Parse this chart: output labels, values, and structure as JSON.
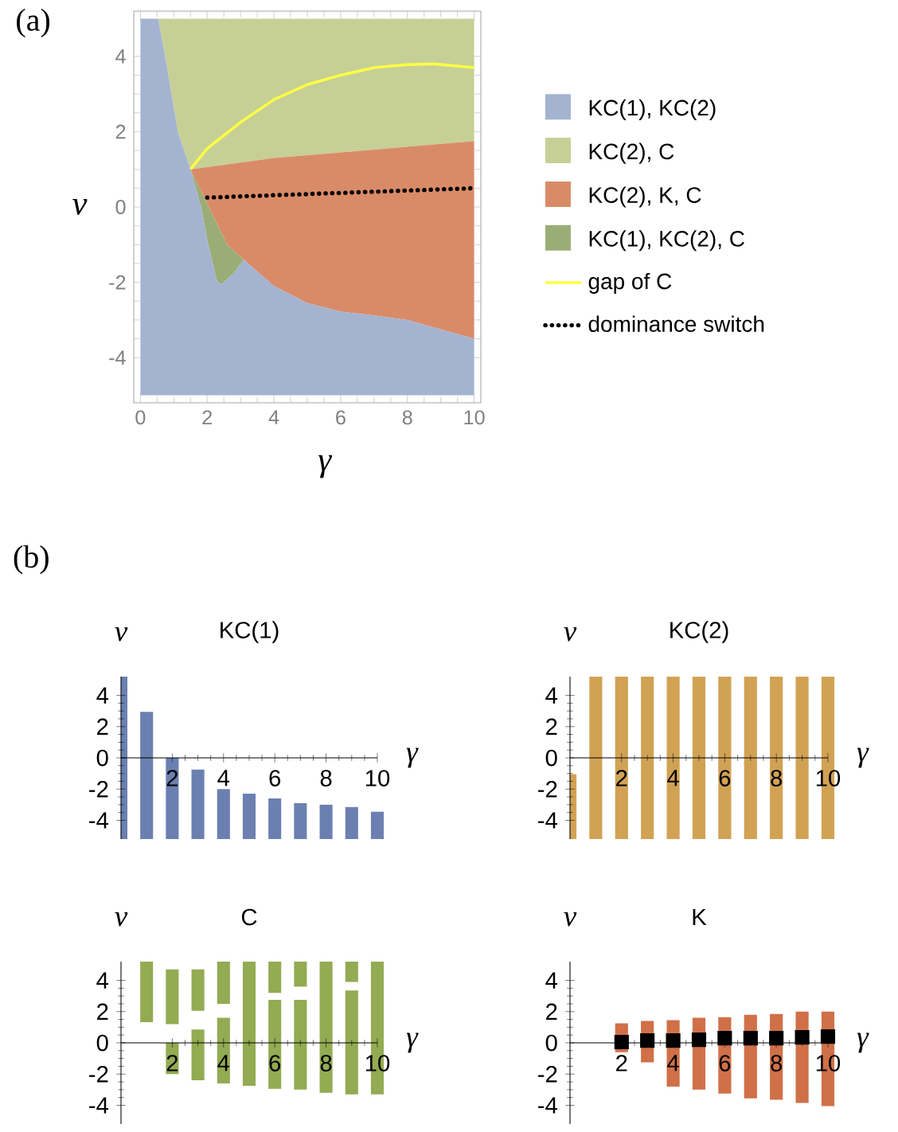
{
  "chart_data": [
    {
      "type": "area",
      "annotations": [
        "(a)"
      ],
      "xlabel": "γ",
      "ylabel": "v",
      "xlim": [
        -0.2,
        10.2
      ],
      "ylim": [
        -5.2,
        5.2
      ],
      "xticks": [
        0,
        2,
        4,
        6,
        8,
        10
      ],
      "yticks": [
        -4,
        -2,
        0,
        2,
        4
      ],
      "legend": "right",
      "series": [
        {
          "name": "KC(1), KC(2)",
          "color": "#a4b3d0",
          "x": [
            0,
            0.53,
            0.74,
            1.12,
            1.5,
            1.82,
            2.03,
            2.3,
            2.45,
            2.8,
            3.1,
            4,
            5,
            6,
            7,
            8,
            9,
            10,
            10,
            0
          ],
          "values": [
            5,
            5,
            4,
            2,
            1,
            0,
            -1,
            -2,
            -2.05,
            -1.75,
            -1.4,
            -2.1,
            -2.55,
            -2.78,
            -2.88,
            -3.0,
            -3.25,
            -3.5,
            -5,
            -5
          ]
        },
        {
          "name": "KC(2), C",
          "color": "#c6d096",
          "x": [
            0.53,
            10,
            10,
            8,
            6,
            4,
            1.5,
            1.12,
            0.74
          ],
          "values": [
            5,
            5,
            1.75,
            1.6,
            1.45,
            1.3,
            1,
            2,
            4
          ]
        },
        {
          "name": "KC(2), K, C",
          "color": "#d98b68",
          "x": [
            1.5,
            4,
            6,
            8,
            10,
            10,
            9,
            8,
            7,
            6,
            5,
            4,
            3.1,
            2.6,
            2.05
          ],
          "values": [
            1,
            1.3,
            1.45,
            1.6,
            1.75,
            -3.5,
            -3.25,
            -3.0,
            -2.88,
            -2.78,
            -2.55,
            -2.1,
            -1.4,
            -1,
            0
          ]
        },
        {
          "name": "KC(1), KC(2), C",
          "color": "#9bad76",
          "x": [
            1.5,
            2.05,
            2.6,
            3.1,
            2.8,
            2.45,
            2.3,
            2.03,
            1.82
          ],
          "values": [
            1,
            0,
            -1,
            -1.4,
            -1.75,
            -2.05,
            -2,
            -1,
            0
          ]
        },
        {
          "name": "gap of C",
          "type": "line",
          "line_style": "solid",
          "color": "#ffff44",
          "x": [
            1.5,
            2,
            3,
            4,
            5,
            6,
            7,
            8,
            8.8,
            10
          ],
          "values": [
            1.0,
            1.55,
            2.25,
            2.85,
            3.25,
            3.5,
            3.7,
            3.78,
            3.8,
            3.7
          ]
        },
        {
          "name": "dominance switch",
          "type": "line",
          "line_style": "dotted",
          "color": "#000000",
          "x": [
            2,
            10
          ],
          "values": [
            0.25,
            0.5
          ]
        }
      ]
    },
    {
      "type": "bar",
      "title": "KC(1)",
      "annotations": [
        "(b)"
      ],
      "xlabel": "γ",
      "ylabel": "v",
      "xlim": [
        0,
        10
      ],
      "ylim": [
        -5.2,
        5.2
      ],
      "xticks": [
        2,
        4,
        6,
        8,
        10
      ],
      "yticks": [
        -4,
        -2,
        0,
        2,
        4
      ],
      "series": [
        {
          "color": "#6b80b0",
          "x": [
            0,
            1,
            2,
            3,
            4,
            5,
            6,
            7,
            8,
            9,
            10
          ],
          "base": [
            -5.2,
            -5.2,
            -5.2,
            -5.2,
            -5.2,
            -5.2,
            -5.2,
            -5.2,
            -5.2,
            -5.2,
            -5.2
          ],
          "values": [
            10.4,
            8.15,
            5.2,
            4.45,
            3.2,
            2.9,
            2.6,
            2.3,
            2.2,
            2.05,
            1.75
          ]
        }
      ]
    },
    {
      "type": "bar",
      "title": "KC(2)",
      "xlabel": "γ",
      "ylabel": "v",
      "xlim": [
        0,
        10
      ],
      "ylim": [
        -5.2,
        5.2
      ],
      "xticks": [
        2,
        4,
        6,
        8,
        10
      ],
      "yticks": [
        -4,
        -2,
        0,
        2,
        4
      ],
      "series": [
        {
          "color": "#d1a254",
          "x": [
            0,
            1,
            2,
            3,
            4,
            5,
            6,
            7,
            8,
            9,
            10
          ],
          "base": [
            -5.2,
            -5.2,
            -5.2,
            -5.2,
            -5.2,
            -5.2,
            -5.2,
            -5.2,
            -5.2,
            -5.2,
            -5.2
          ],
          "values": [
            4.15,
            10.4,
            10.4,
            10.4,
            10.4,
            10.4,
            10.4,
            10.4,
            10.4,
            10.4,
            10.4
          ]
        }
      ]
    },
    {
      "type": "bar",
      "title": "C",
      "xlabel": "γ",
      "ylabel": "v",
      "xlim": [
        0,
        10
      ],
      "ylim": [
        -5.2,
        5.2
      ],
      "xticks": [
        2,
        4,
        6,
        8,
        10
      ],
      "yticks": [
        -4,
        -2,
        0,
        2,
        4
      ],
      "series": [
        {
          "color": "#93ab52",
          "x": [
            1,
            2,
            3,
            4,
            5,
            6,
            7,
            8,
            9,
            10
          ],
          "base": [
            1.33,
            1.2,
            2.05,
            2.5,
            -2.75,
            3.2,
            3.6,
            -3.2,
            3.9,
            -3.3
          ],
          "values": [
            3.87,
            3.5,
            2.65,
            2.7,
            7.95,
            2.0,
            1.6,
            8.4,
            1.3,
            8.5
          ]
        },
        {
          "color": "#93ab52",
          "x": [
            2,
            3,
            4,
            6,
            7,
            9
          ],
          "base": [
            -2.0,
            -2.4,
            -2.6,
            -2.95,
            -3.0,
            -3.3
          ],
          "values": [
            2.0,
            3.25,
            4.2,
            5.7,
            5.75,
            6.65
          ]
        }
      ]
    },
    {
      "type": "bar",
      "title": "K",
      "xlabel": "γ",
      "ylabel": "v",
      "xlim": [
        0,
        10
      ],
      "ylim": [
        -5.2,
        5.2
      ],
      "xticks": [
        2,
        4,
        6,
        8,
        10
      ],
      "yticks": [
        -4,
        -2,
        0,
        2,
        4
      ],
      "series": [
        {
          "color": "#d07048",
          "x": [
            2,
            3,
            4,
            5,
            6,
            7,
            8,
            9,
            10
          ],
          "base": [
            -0.6,
            -1.25,
            -2.8,
            -3.0,
            -3.25,
            -3.55,
            -3.65,
            -3.85,
            -4.05
          ],
          "values": [
            1.85,
            2.65,
            4.25,
            4.6,
            4.9,
            5.35,
            5.5,
            5.85,
            6.05
          ]
        },
        {
          "type": "scatter",
          "marker": "square",
          "color": "#000000",
          "x": [
            2,
            3,
            4,
            5,
            6,
            7,
            8,
            9,
            10
          ],
          "values": [
            0.05,
            0.15,
            0.15,
            0.2,
            0.3,
            0.3,
            0.3,
            0.35,
            0.4
          ]
        }
      ]
    }
  ]
}
